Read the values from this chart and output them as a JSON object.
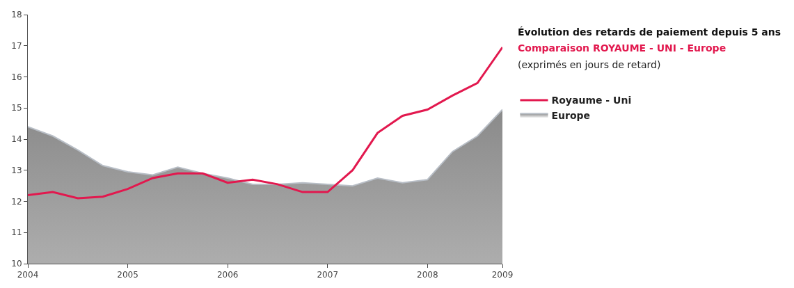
{
  "chart_data": {
    "type": "line",
    "title": "Évolution des retards de paiement depuis 5 ans",
    "subtitle": "Comparaison ROYAUME - UNI - Europe",
    "annotations": [
      "(exprimés en jours de retard)"
    ],
    "categories": [
      "2004",
      null,
      null,
      null,
      "2005",
      null,
      null,
      null,
      "2006",
      null,
      null,
      null,
      "2007",
      null,
      null,
      null,
      "2008",
      null,
      null,
      "2009"
    ],
    "series": [
      {
        "name": "Europe",
        "type": "area",
        "color": "#b8bec6",
        "values": [
          14.4,
          14.1,
          13.65,
          13.15,
          12.95,
          12.85,
          13.1,
          12.9,
          12.75,
          12.55,
          12.55,
          12.6,
          12.55,
          12.5,
          12.75,
          12.6,
          12.7,
          13.6,
          14.1,
          14.95
        ]
      },
      {
        "name": "Royaume - Uni",
        "color": "#e2184e",
        "values": [
          12.2,
          12.3,
          12.1,
          12.15,
          12.4,
          12.75,
          12.9,
          12.9,
          12.6,
          12.7,
          12.55,
          12.3,
          12.3,
          13.0,
          14.2,
          14.75,
          14.95,
          15.4,
          15.8,
          16.95
        ]
      }
    ],
    "ylim": [
      10,
      18
    ],
    "yticks": [
      10,
      11,
      12,
      13,
      14,
      15,
      16,
      17,
      18
    ],
    "legend": "right",
    "marker": "none",
    "line_style": "solid"
  }
}
